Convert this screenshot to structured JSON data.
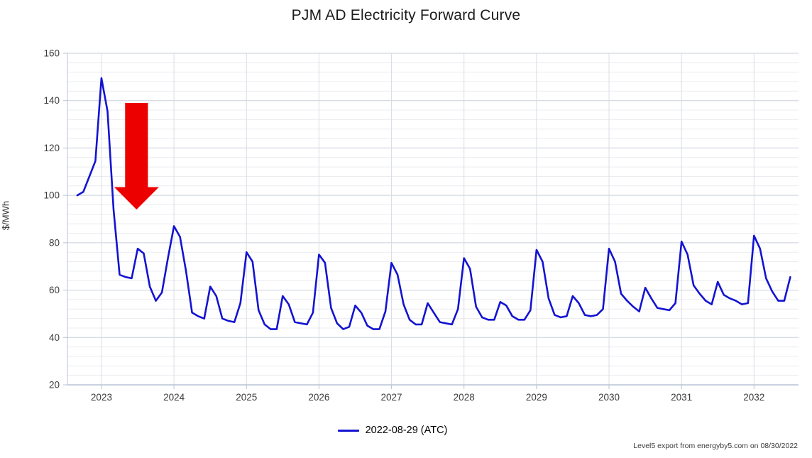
{
  "title": "PJM AD Electricity Forward Curve",
  "y_axis": {
    "label": "$/MWh",
    "ticks": [
      160,
      140,
      120,
      100,
      80,
      60,
      40,
      20
    ],
    "min": 20,
    "max": 160,
    "major_step": 20,
    "minor_step": 4
  },
  "x_axis": {
    "ticks": [
      "2023",
      "2024",
      "2025",
      "2026",
      "2027",
      "2028",
      "2029",
      "2030",
      "2031",
      "2032"
    ]
  },
  "legend": {
    "label": "2022-08-29 (ATC)",
    "color": "#1313D2"
  },
  "footer": "Level5 export from energyby5.com on 08/30/2022",
  "colors": {
    "series_line": "#1313D2",
    "arrow_red": "#EC0000",
    "grid_major": "#C9CFDB",
    "grid_minor": "#EAECF0",
    "grid_vertical": "#D9DDE6",
    "axis_line": "#B9C3D5",
    "tick_text": "#3c3c3c"
  },
  "chart_data": {
    "type": "line",
    "title": "PJM AD Electricity Forward Curve",
    "ylabel": "$/MWh",
    "ylim": [
      20,
      160
    ],
    "grid": true,
    "legend_position": "bottom",
    "series_name": "2022-08-29 (ATC)",
    "x_start_month": "2022-09",
    "x_interval": "month",
    "x_year_ticks": [
      2023,
      2024,
      2025,
      2026,
      2027,
      2028,
      2029,
      2030,
      2031,
      2032
    ],
    "unit": "$/MWh",
    "values": [
      100,
      101.5,
      108,
      114.5,
      149.5,
      135.5,
      94,
      66.5,
      65.5,
      65,
      77.5,
      75.5,
      61.5,
      55.5,
      59,
      73.5,
      87,
      82.5,
      68,
      50.5,
      49,
      48,
      61.5,
      57.5,
      48,
      47,
      46.5,
      54.5,
      76,
      72,
      51.5,
      45.5,
      43.5,
      43.5,
      57.5,
      54,
      46.5,
      46,
      45.5,
      50.5,
      75,
      71.5,
      52.5,
      46,
      43.5,
      44.5,
      53.5,
      50.5,
      45,
      43.5,
      43.5,
      51,
      71.5,
      66.5,
      54,
      47.5,
      45.5,
      45.5,
      54.5,
      50.5,
      46.5,
      46,
      45.5,
      52,
      73.5,
      69,
      53,
      48.5,
      47.5,
      47.5,
      55,
      53.5,
      49,
      47.5,
      47.5,
      51.5,
      77,
      72,
      56.5,
      49.5,
      48.5,
      49,
      57.5,
      54.5,
      49.5,
      49,
      49.5,
      52,
      77.5,
      72,
      58.5,
      55.5,
      53,
      51,
      61,
      56.5,
      52.5,
      52,
      51.5,
      54.5,
      80.5,
      75,
      62,
      58.5,
      55.5,
      54,
      63.5,
      58,
      56.5,
      55.5,
      54,
      54.5,
      83,
      77.5,
      65,
      59.5,
      55.5,
      55.5,
      65.5
    ],
    "annotation_arrow": {
      "description": "large red arrow pointing down at the early-2023 price drop",
      "direction": "down",
      "color": "#EC0000",
      "x_index_range": [
        6.1,
        13.5
      ],
      "value_top": 139,
      "value_head_base": 103.5,
      "value_tip": 94
    }
  }
}
